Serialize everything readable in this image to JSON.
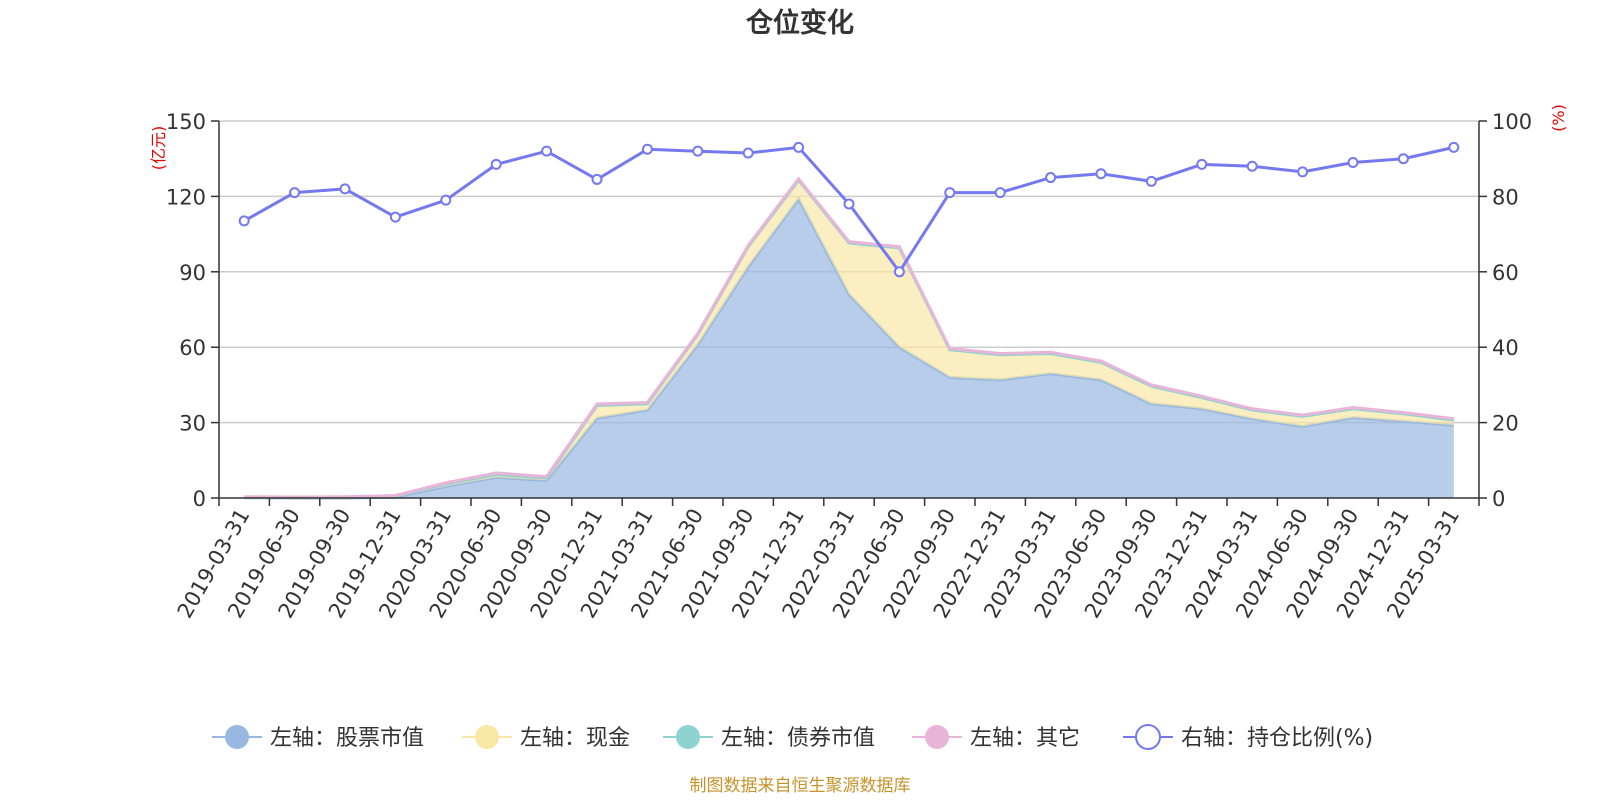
{
  "chart_data": {
    "type": "area",
    "title": "仓位变化",
    "left_axis_unit": "(亿元)",
    "right_axis_unit": "(%)",
    "left_ylim": [
      0,
      150
    ],
    "left_yticks": [
      0,
      30,
      60,
      90,
      120,
      150
    ],
    "right_ylim": [
      0,
      100
    ],
    "right_yticks": [
      0,
      20,
      40,
      60,
      80,
      100
    ],
    "grid": true,
    "legend_position": "bottom",
    "x": [
      "2019-03-31",
      "2019-06-30",
      "2019-09-30",
      "2019-12-31",
      "2020-03-31",
      "2020-06-30",
      "2020-09-30",
      "2020-12-31",
      "2021-03-31",
      "2021-06-30",
      "2021-09-30",
      "2021-12-31",
      "2022-03-31",
      "2022-06-30",
      "2022-09-30",
      "2022-12-31",
      "2023-03-31",
      "2023-06-30",
      "2023-09-30",
      "2023-12-31",
      "2024-03-31",
      "2024-06-30",
      "2024-09-30",
      "2024-12-31",
      "2025-03-31"
    ],
    "series": [
      {
        "name": "左轴：股票市值",
        "axis": "left",
        "type": "area",
        "color": "#98b8e1",
        "values": [
          0.1,
          0,
          0,
          0.3,
          4.6,
          8.2,
          7.0,
          31.8,
          35.0,
          61.0,
          92.0,
          119.0,
          81.0,
          60.0,
          48.0,
          47.0,
          49.5,
          47.0,
          37.5,
          35.5,
          31.5,
          28.5,
          32.0,
          30.5,
          29.0
        ]
      },
      {
        "name": "左轴：现金",
        "axis": "left",
        "type": "area",
        "color": "#f9e7a5",
        "values": [
          0.2,
          0.2,
          0.3,
          0.5,
          1.0,
          1.2,
          1.0,
          5.0,
          2.5,
          4.0,
          8.0,
          7.5,
          20.5,
          39.5,
          11.0,
          10.0,
          8.0,
          7.0,
          7.0,
          4.5,
          3.5,
          4.0,
          3.5,
          3.0,
          2.0
        ]
      },
      {
        "name": "左轴：债券市值",
        "axis": "left",
        "type": "area",
        "color": "#8fd3d1",
        "values": [
          0,
          0,
          0,
          0,
          0,
          0,
          0,
          0,
          0,
          0,
          0,
          0,
          0,
          0,
          0,
          0,
          0,
          0,
          0,
          0,
          0,
          0,
          0,
          0,
          0
        ]
      },
      {
        "name": "左轴：其它",
        "axis": "left",
        "type": "area",
        "color": "#e8b5d8",
        "values": [
          0.2,
          0.2,
          0.2,
          0.2,
          0.4,
          0.6,
          0.5,
          0.6,
          0.5,
          0.5,
          0.5,
          0.5,
          0.5,
          0.5,
          0.5,
          0.5,
          0.5,
          0.5,
          0.5,
          0.5,
          0.5,
          0.5,
          0.5,
          0.5,
          0.5
        ]
      },
      {
        "name": "右轴：持仓比例(%)",
        "axis": "right",
        "type": "line",
        "color": "#7479ef",
        "values": [
          73.5,
          81.0,
          82.0,
          74.5,
          79.0,
          88.5,
          92.0,
          84.5,
          92.5,
          92.0,
          91.5,
          93.0,
          78.0,
          60.0,
          81.0,
          81.0,
          85.0,
          86.0,
          84.0,
          88.5,
          88.0,
          86.5,
          89.0,
          90.0,
          93.0
        ]
      }
    ]
  },
  "footer": {
    "source": "制图数据来自恒生聚源数据库"
  }
}
